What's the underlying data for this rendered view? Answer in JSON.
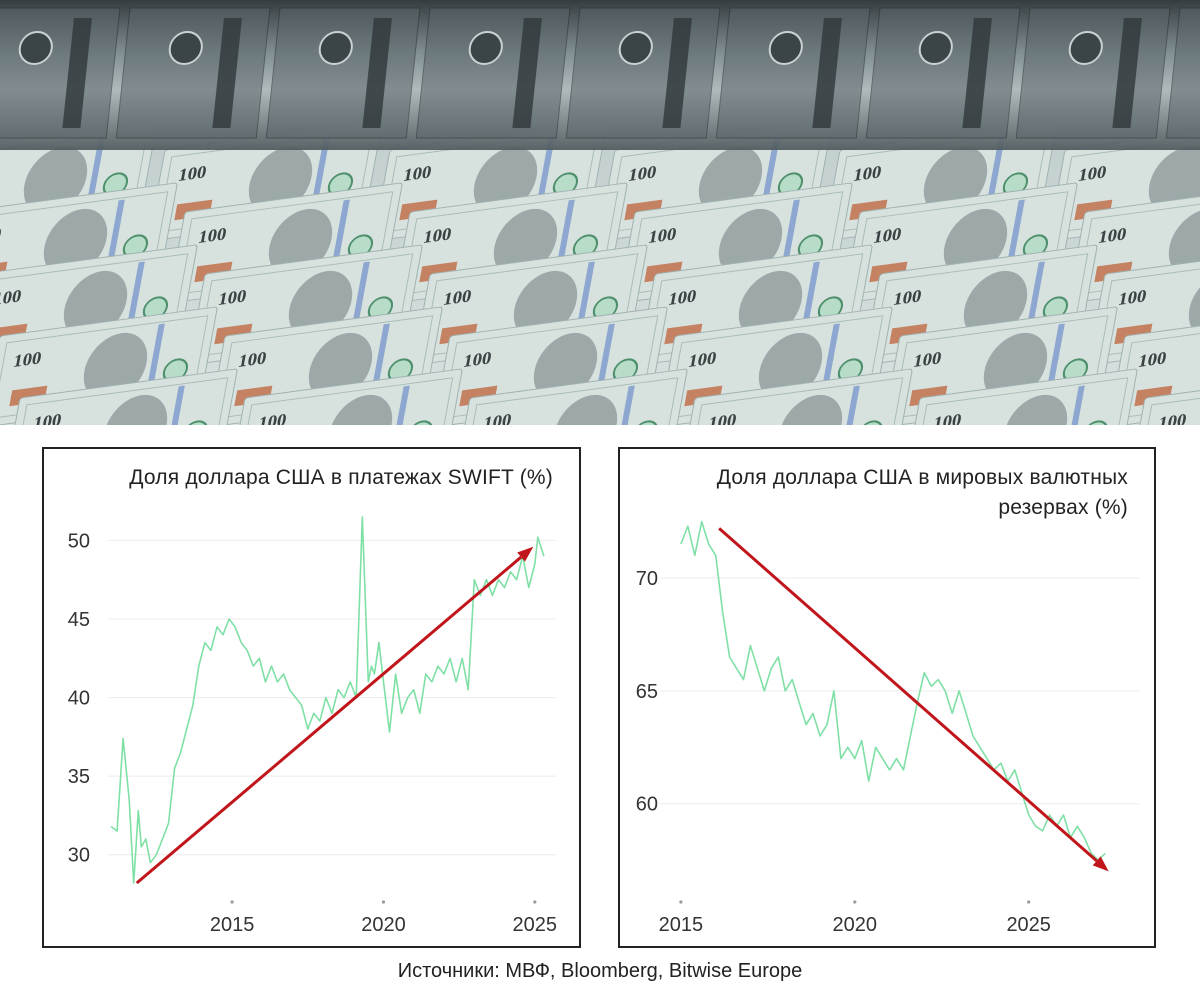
{
  "source": "Источники: МВФ, Bloomberg, Bitwise Europe",
  "colors": {
    "line": "#7fe0a6",
    "arrow": "#c0161b",
    "grid": "#ececec",
    "banner_bg": "#c9d6d6",
    "note_green": "#b7ddc8",
    "note_ink": "#3a4244"
  },
  "banner": {
    "text": [
      "100",
      "100",
      "100",
      "100",
      "100",
      "100",
      "100",
      "100",
      "100",
      "100",
      "100",
      "100",
      "100",
      "100",
      "100",
      "100"
    ]
  },
  "chart_data": [
    {
      "type": "line",
      "title": "Доля доллара США в платежах SWIFT (%)",
      "xticks": [
        "2015",
        "2020",
        "2025"
      ],
      "xtick_values": [
        2015,
        2020,
        2025
      ],
      "yticks": [
        "30",
        "35",
        "40",
        "45",
        "50"
      ],
      "ytick_values": [
        30,
        35,
        40,
        45,
        50
      ],
      "xlim": [
        2010.9,
        2025.7
      ],
      "ylim": [
        27.5,
        52
      ],
      "grid": "horizontal",
      "series": [
        {
          "x": [
            2011.0,
            2011.2,
            2011.4,
            2011.6,
            2011.75,
            2011.9,
            2012.0,
            2012.15,
            2012.3,
            2012.5,
            2012.7,
            2012.9,
            2013.1,
            2013.3,
            2013.5,
            2013.7,
            2013.9,
            2014.1,
            2014.3,
            2014.5,
            2014.7,
            2014.9,
            2015.1,
            2015.3,
            2015.5,
            2015.7,
            2015.9,
            2016.1,
            2016.3,
            2016.5,
            2016.7,
            2016.9,
            2017.1,
            2017.3,
            2017.5,
            2017.7,
            2017.9,
            2018.1,
            2018.3,
            2018.5,
            2018.7,
            2018.9,
            2019.1,
            2019.3,
            2019.5,
            2019.6,
            2019.7,
            2019.85,
            2020.0,
            2020.2,
            2020.4,
            2020.6,
            2020.8,
            2021.0,
            2021.2,
            2021.4,
            2021.6,
            2021.8,
            2022.0,
            2022.2,
            2022.4,
            2022.6,
            2022.8,
            2023.0,
            2023.2,
            2023.4,
            2023.5,
            2023.6,
            2023.8,
            2024.0,
            2024.2,
            2024.4,
            2024.6,
            2024.8,
            2025.0,
            2025.1,
            2025.3
          ],
          "y": [
            31.8,
            31.5,
            37.4,
            33.5,
            28.2,
            32.8,
            30.5,
            31.0,
            29.5,
            30.0,
            31.0,
            32.0,
            35.5,
            36.5,
            38.0,
            39.5,
            42.0,
            43.5,
            43.0,
            44.5,
            44.0,
            45.0,
            44.5,
            43.5,
            43.0,
            42.0,
            42.5,
            41.0,
            42.0,
            41.0,
            41.5,
            40.5,
            40.0,
            39.5,
            38.0,
            39.0,
            38.5,
            40.0,
            39.0,
            40.5,
            40.0,
            41.0,
            40.0,
            51.5,
            41.0,
            42.0,
            41.5,
            43.5,
            41.0,
            37.8,
            41.5,
            39.0,
            40.0,
            40.5,
            39.0,
            41.5,
            41.0,
            42.0,
            41.5,
            42.5,
            41.0,
            42.5,
            40.5,
            47.5,
            46.5,
            47.5,
            47.0,
            46.5,
            47.5,
            47.0,
            48.0,
            47.5,
            49.0,
            47.0,
            48.5,
            50.2,
            49.0
          ]
        }
      ],
      "trend_arrow": {
        "from": [
          2011.85,
          28.2
        ],
        "to": [
          2024.95,
          49.6
        ]
      }
    },
    {
      "type": "line",
      "title": "Доля доллара США в мировых валютных резервах (%)",
      "xticks": [
        "2015",
        "2020",
        "2025"
      ],
      "xtick_values": [
        2015,
        2020,
        2025
      ],
      "yticks": [
        "60",
        "65",
        "70"
      ],
      "ytick_values": [
        60,
        65,
        70
      ],
      "xlim": [
        2014.4,
        2028.2
      ],
      "ylim": [
        56.0,
        73.5
      ],
      "grid": "horizontal",
      "series": [
        {
          "x": [
            2015.0,
            2015.2,
            2015.4,
            2015.6,
            2015.8,
            2016.0,
            2016.2,
            2016.4,
            2016.6,
            2016.8,
            2017.0,
            2017.2,
            2017.4,
            2017.6,
            2017.8,
            2018.0,
            2018.2,
            2018.4,
            2018.6,
            2018.8,
            2019.0,
            2019.2,
            2019.4,
            2019.6,
            2019.8,
            2020.0,
            2020.2,
            2020.4,
            2020.6,
            2020.8,
            2021.0,
            2021.2,
            2021.4,
            2021.6,
            2021.8,
            2022.0,
            2022.2,
            2022.4,
            2022.6,
            2022.8,
            2023.0,
            2023.2,
            2023.4,
            2023.6,
            2023.8,
            2024.0,
            2024.2,
            2024.4,
            2024.6,
            2024.8,
            2025.0,
            2025.2,
            2025.4,
            2025.6,
            2025.8,
            2026.0,
            2026.2,
            2026.4,
            2026.6,
            2026.8,
            2027.0,
            2027.2
          ],
          "y": [
            71.5,
            72.3,
            71.0,
            72.5,
            71.5,
            71.0,
            68.5,
            66.5,
            66.0,
            65.5,
            67.0,
            66.0,
            65.0,
            66.0,
            66.5,
            65.0,
            65.5,
            64.5,
            63.5,
            64.0,
            63.0,
            63.5,
            65.0,
            62.0,
            62.5,
            62.0,
            62.8,
            61.0,
            62.5,
            62.0,
            61.5,
            62.0,
            61.5,
            63.0,
            64.5,
            65.8,
            65.2,
            65.5,
            65.0,
            64.0,
            65.0,
            64.0,
            63.0,
            62.5,
            62.0,
            61.5,
            61.8,
            61.0,
            61.5,
            60.5,
            59.5,
            59.0,
            58.8,
            59.5,
            59.0,
            59.5,
            58.5,
            59.0,
            58.5,
            57.8,
            57.5,
            57.8
          ]
        }
      ],
      "trend_arrow": {
        "from": [
          2016.1,
          72.2
        ],
        "to": [
          2027.3,
          57.0
        ]
      }
    }
  ]
}
